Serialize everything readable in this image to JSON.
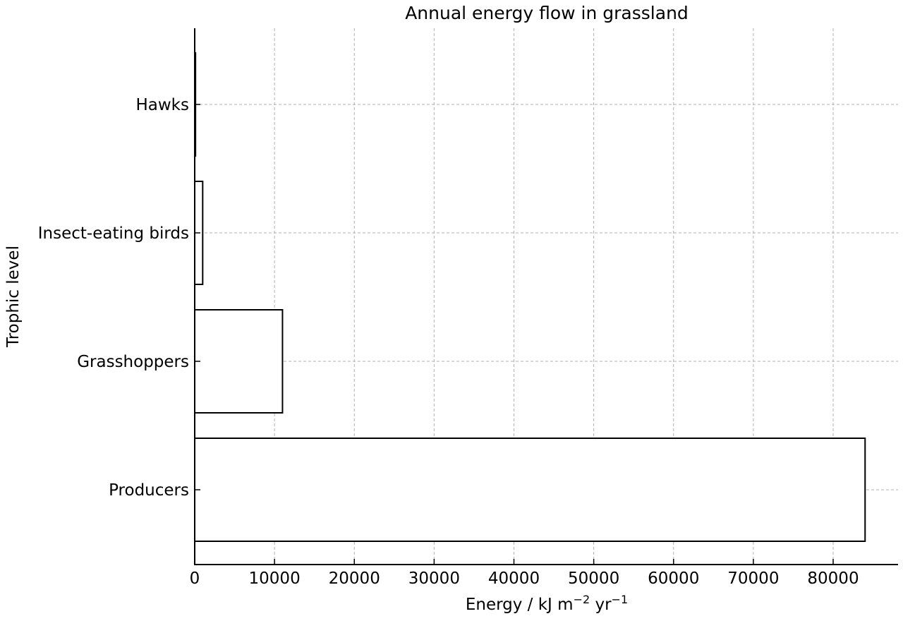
{
  "chart_data": {
    "type": "bar",
    "orientation": "horizontal",
    "title": "Annual energy flow in grassland",
    "xlabel": "Energy / kJ m",
    "xlabel_sup1": "−2",
    "xlabel_mid": " yr",
    "xlabel_sup2": "−1",
    "ylabel": "Trophic level",
    "categories": [
      "Producers",
      "Grasshoppers",
      "Insect-eating birds",
      "Hawks"
    ],
    "values": [
      84000,
      11000,
      1000,
      100
    ],
    "xlim": [
      0,
      88000
    ],
    "xticks": [
      0,
      10000,
      20000,
      30000,
      40000,
      50000,
      60000,
      70000,
      80000
    ],
    "grid": true,
    "bar_fill": "#ffffff",
    "bar_edge": "#000000",
    "grid_color": "#b0b0b0"
  }
}
